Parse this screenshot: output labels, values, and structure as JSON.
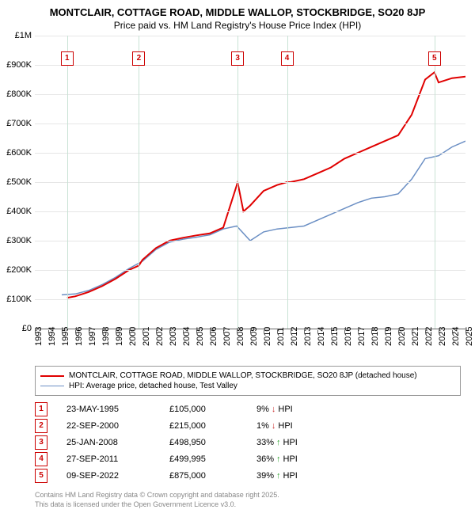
{
  "title": "MONTCLAIR, COTTAGE ROAD, MIDDLE WALLOP, STOCKBRIDGE, SO20 8JP",
  "subtitle": "Price paid vs. HM Land Registry's House Price Index (HPI)",
  "chart": {
    "type": "line",
    "background_color": "#ffffff",
    "grid_color": "#e6e6e6",
    "axis_color": "#666666",
    "ylim": [
      0,
      1000000
    ],
    "ytick_step": 100000,
    "ytick_labels": [
      "£0",
      "£100K",
      "£200K",
      "£300K",
      "£400K",
      "£500K",
      "£600K",
      "£700K",
      "£800K",
      "£900K",
      "£1M"
    ],
    "xlim": [
      1993,
      2025
    ],
    "xtick_step": 1,
    "xtick_labels": [
      "1993",
      "1994",
      "1995",
      "1996",
      "1997",
      "1998",
      "1999",
      "2000",
      "2001",
      "2002",
      "2003",
      "2004",
      "2005",
      "2006",
      "2007",
      "2008",
      "2009",
      "2010",
      "2011",
      "2012",
      "2013",
      "2014",
      "2015",
      "2016",
      "2017",
      "2018",
      "2019",
      "2020",
      "2021",
      "2022",
      "2023",
      "2024",
      "2025"
    ],
    "series": [
      {
        "name": "MONTCLAIR, COTTAGE ROAD, MIDDLE WALLOP, STOCKBRIDGE, SO20 8JP (detached house)",
        "color": "#e00000",
        "line_width": 2,
        "x": [
          1995.4,
          1996,
          1997,
          1998,
          1999,
          2000,
          2000.73,
          2001,
          2002,
          2003,
          2004,
          2005,
          2006,
          2007,
          2008.07,
          2008.5,
          2009,
          2010,
          2011,
          2011.74,
          2012,
          2013,
          2014,
          2015,
          2016,
          2017,
          2018,
          2019,
          2020,
          2021,
          2022,
          2022.69,
          2023,
          2024,
          2025
        ],
        "y": [
          105000,
          110000,
          125000,
          145000,
          170000,
          200000,
          215000,
          235000,
          275000,
          300000,
          310000,
          318000,
          325000,
          345000,
          498950,
          400000,
          420000,
          470000,
          490000,
          499995,
          500000,
          510000,
          530000,
          550000,
          580000,
          600000,
          620000,
          640000,
          660000,
          730000,
          850000,
          875000,
          840000,
          855000,
          860000
        ]
      },
      {
        "name": "HPI: Average price, detached house, Test Valley",
        "color": "#6b8fc4",
        "line_width": 1.5,
        "x": [
          1995,
          1996,
          1997,
          1998,
          1999,
          2000,
          2001,
          2002,
          2003,
          2004,
          2005,
          2006,
          2007,
          2008,
          2009,
          2010,
          2011,
          2012,
          2013,
          2014,
          2015,
          2016,
          2017,
          2018,
          2019,
          2020,
          2021,
          2022,
          2023,
          2024,
          2025
        ],
        "y": [
          115000,
          118000,
          130000,
          150000,
          175000,
          205000,
          230000,
          270000,
          295000,
          305000,
          312000,
          320000,
          340000,
          350000,
          300000,
          330000,
          340000,
          345000,
          350000,
          370000,
          390000,
          410000,
          430000,
          445000,
          450000,
          460000,
          510000,
          580000,
          590000,
          620000,
          640000
        ]
      }
    ],
    "markers": [
      {
        "n": "1",
        "x": 1995.4,
        "y_top": 20
      },
      {
        "n": "2",
        "x": 2000.73,
        "y_top": 20
      },
      {
        "n": "3",
        "x": 2008.07,
        "y_top": 20
      },
      {
        "n": "4",
        "x": 2011.74,
        "y_top": 20
      },
      {
        "n": "5",
        "x": 2022.69,
        "y_top": 20
      }
    ],
    "marker_line_color": "#c9e2d5",
    "marker_badge_border": "#cc0000",
    "marker_badge_text_color": "#cc0000"
  },
  "legend": {
    "items": [
      {
        "label": "MONTCLAIR, COTTAGE ROAD, MIDDLE WALLOP, STOCKBRIDGE, SO20 8JP (detached house)",
        "color": "#e00000",
        "width": 2
      },
      {
        "label": "HPI: Average price, detached house, Test Valley",
        "color": "#6b8fc4",
        "width": 1.5
      }
    ]
  },
  "transactions": [
    {
      "n": "1",
      "date": "23-MAY-1995",
      "price": "£105,000",
      "pct": "9%",
      "dir": "down",
      "suffix": "HPI"
    },
    {
      "n": "2",
      "date": "22-SEP-2000",
      "price": "£215,000",
      "pct": "1%",
      "dir": "down",
      "suffix": "HPI"
    },
    {
      "n": "3",
      "date": "25-JAN-2008",
      "price": "£498,950",
      "pct": "33%",
      "dir": "up",
      "suffix": "HPI"
    },
    {
      "n": "4",
      "date": "27-SEP-2011",
      "price": "£499,995",
      "pct": "36%",
      "dir": "up",
      "suffix": "HPI"
    },
    {
      "n": "5",
      "date": "09-SEP-2022",
      "price": "£875,000",
      "pct": "39%",
      "dir": "up",
      "suffix": "HPI"
    }
  ],
  "footer": {
    "line1": "Contains HM Land Registry data © Crown copyright and database right 2025.",
    "line2": "This data is licensed under the Open Government Licence v3.0."
  },
  "arrow_up_color": "#2aa02a",
  "arrow_down_color": "#cc3333"
}
